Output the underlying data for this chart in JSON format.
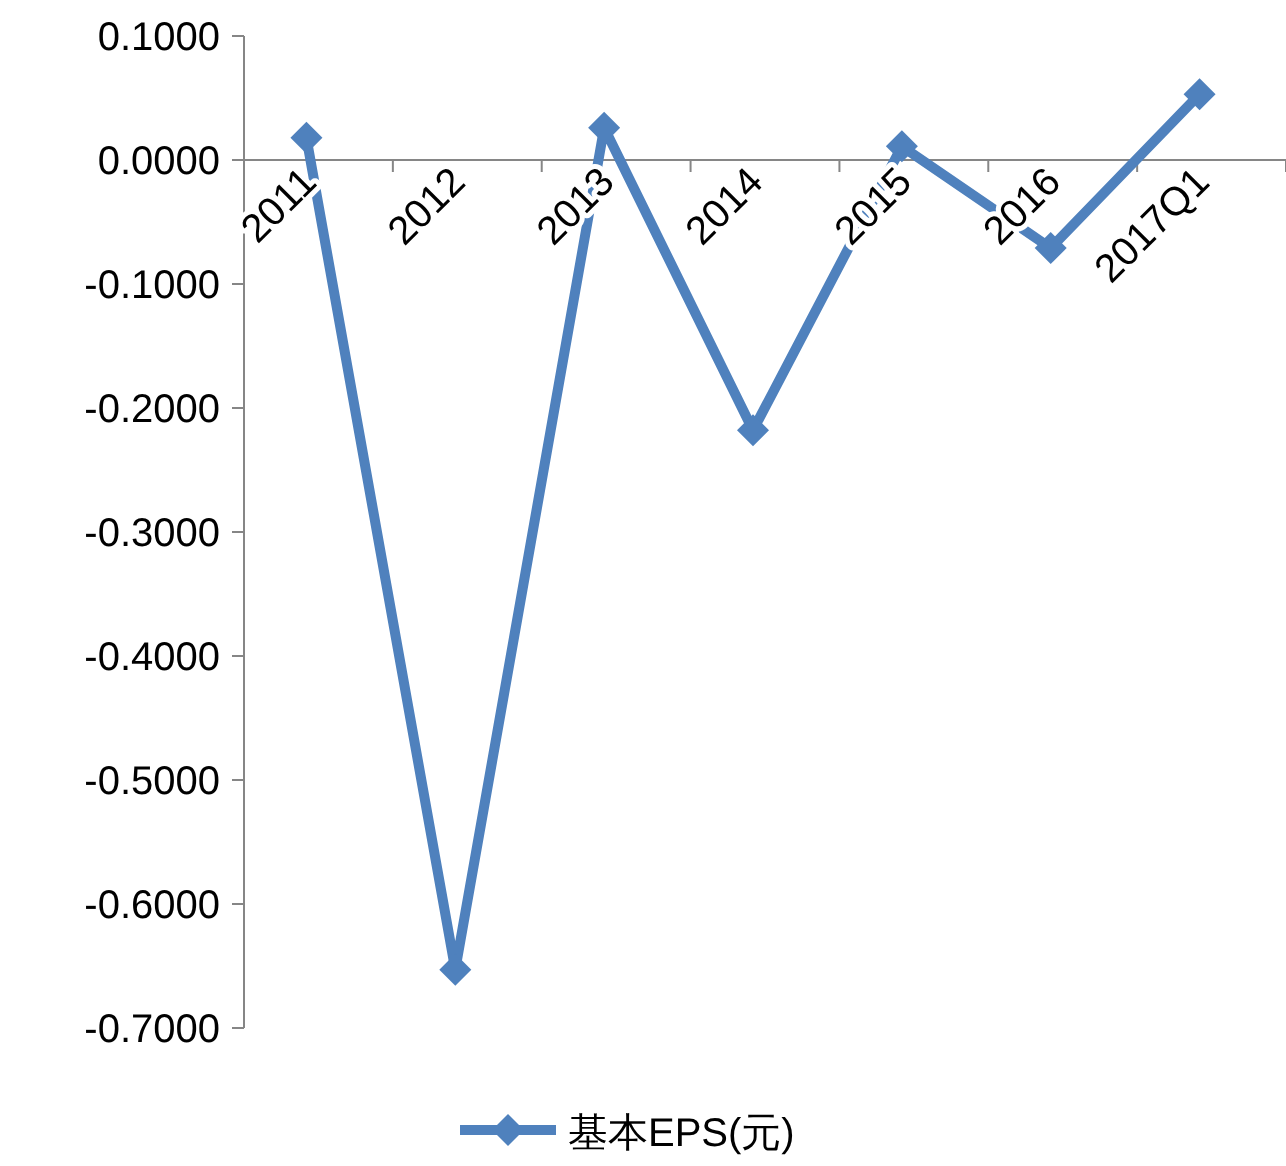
{
  "chart_data": {
    "type": "line",
    "categories": [
      "2011",
      "2012",
      "2013",
      "2014",
      "2015",
      "2016",
      "2017Q1"
    ],
    "series": [
      {
        "name": "基本EPS(元)",
        "color": "#4f81bd",
        "values": [
          0.018,
          -0.653,
          0.026,
          -0.218,
          0.011,
          -0.071,
          0.053
        ]
      }
    ],
    "ylim": [
      -0.7,
      0.1
    ],
    "yticks": [
      {
        "value": 0.1,
        "label": "0.1000"
      },
      {
        "value": 0,
        "label": "0.0000"
      },
      {
        "value": -0.1,
        "label": "-0.1000"
      },
      {
        "value": -0.2,
        "label": "-0.2000"
      },
      {
        "value": -0.3,
        "label": "-0.3000"
      },
      {
        "value": -0.4,
        "label": "-0.4000"
      },
      {
        "value": -0.5,
        "label": "-0.5000"
      },
      {
        "value": -0.6,
        "label": "-0.6000"
      },
      {
        "value": -0.7,
        "label": "-0.7000"
      }
    ],
    "marker": "diamond",
    "line_style": "solid",
    "legend": "bottom"
  }
}
